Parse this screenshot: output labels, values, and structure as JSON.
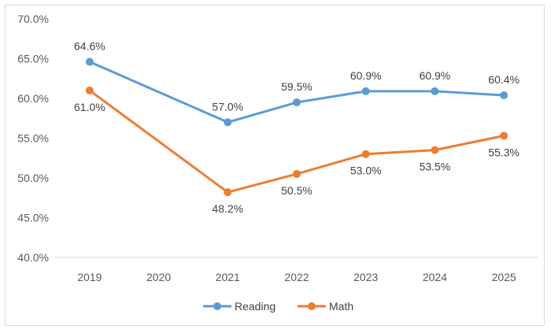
{
  "chart_data": {
    "type": "line",
    "categories": [
      "2019",
      "2020",
      "2021",
      "2022",
      "2023",
      "2024",
      "2025"
    ],
    "series": [
      {
        "name": "Reading",
        "color": "#5b9bd5",
        "values": [
          64.6,
          null,
          57.0,
          59.5,
          60.9,
          60.9,
          60.4
        ],
        "labels": [
          "64.6%",
          "",
          "57.0%",
          "59.5%",
          "60.9%",
          "60.9%",
          "60.4%"
        ]
      },
      {
        "name": "Math",
        "color": "#ed7d31",
        "values": [
          61.0,
          null,
          48.2,
          50.5,
          53.0,
          53.5,
          55.3
        ],
        "labels": [
          "61.0%",
          "",
          "48.2%",
          "50.5%",
          "53.0%",
          "53.5%",
          "55.3%"
        ]
      }
    ],
    "ylim": [
      40,
      70
    ],
    "yticks": [
      40,
      45,
      50,
      55,
      60,
      65,
      70
    ],
    "ytick_labels": [
      "40.0%",
      "45.0%",
      "50.0%",
      "55.0%",
      "60.0%",
      "65.0%",
      "70.0%"
    ],
    "title": "",
    "xlabel": "",
    "ylabel": "",
    "grid": "none",
    "legend": "bottom"
  }
}
